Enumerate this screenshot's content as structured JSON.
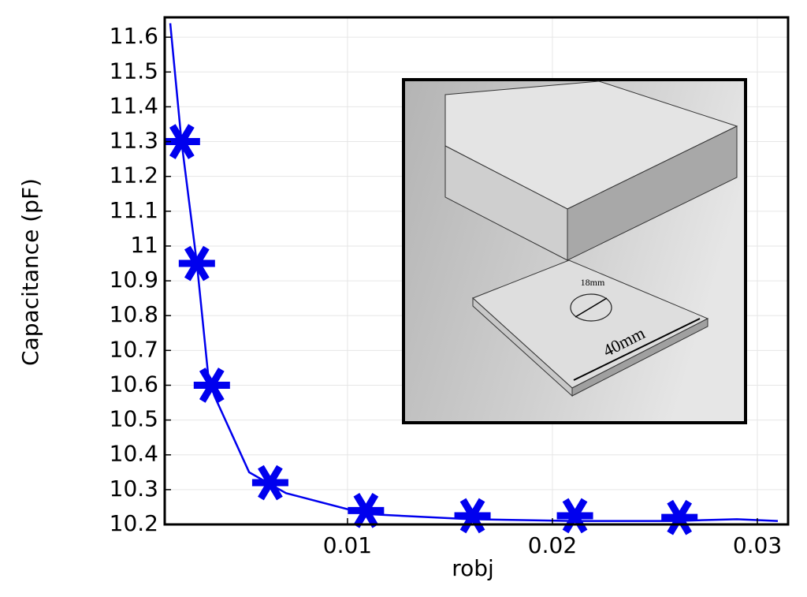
{
  "chart_data": {
    "type": "line",
    "xlabel": "robj",
    "ylabel": "Capacitance (pF)",
    "xlim": [
      0.00108,
      0.0315
    ],
    "ylim": [
      10.2,
      11.657
    ],
    "xticks": [
      0.01,
      0.02,
      0.03
    ],
    "yticks": [
      10.2,
      10.3,
      10.4,
      10.5,
      10.6,
      10.7,
      10.8,
      10.9,
      11,
      11.1,
      11.2,
      11.3,
      11.4,
      11.5,
      11.6
    ],
    "grid": true,
    "series": [
      {
        "color": "#0000ee",
        "style": "line",
        "x": [
          0.00135,
          0.0019,
          0.00265,
          0.0032,
          0.0035,
          0.0052,
          0.007,
          0.0109,
          0.016,
          0.021,
          0.026,
          0.029,
          0.031
        ],
        "values": [
          11.64,
          11.3,
          10.95,
          10.63,
          10.57,
          10.35,
          10.29,
          10.23,
          10.215,
          10.21,
          10.21,
          10.215,
          10.21
        ]
      },
      {
        "color": "#0000ee",
        "style": "marker",
        "x": [
          0.00192,
          0.00265,
          0.00338,
          0.00623,
          0.0109,
          0.0161,
          0.0211,
          0.0262
        ],
        "values": [
          11.3,
          10.95,
          10.6,
          10.32,
          10.24,
          10.225,
          10.225,
          10.22
        ]
      }
    ]
  },
  "inset": {
    "labels": [
      "18mm",
      "40mm"
    ]
  }
}
